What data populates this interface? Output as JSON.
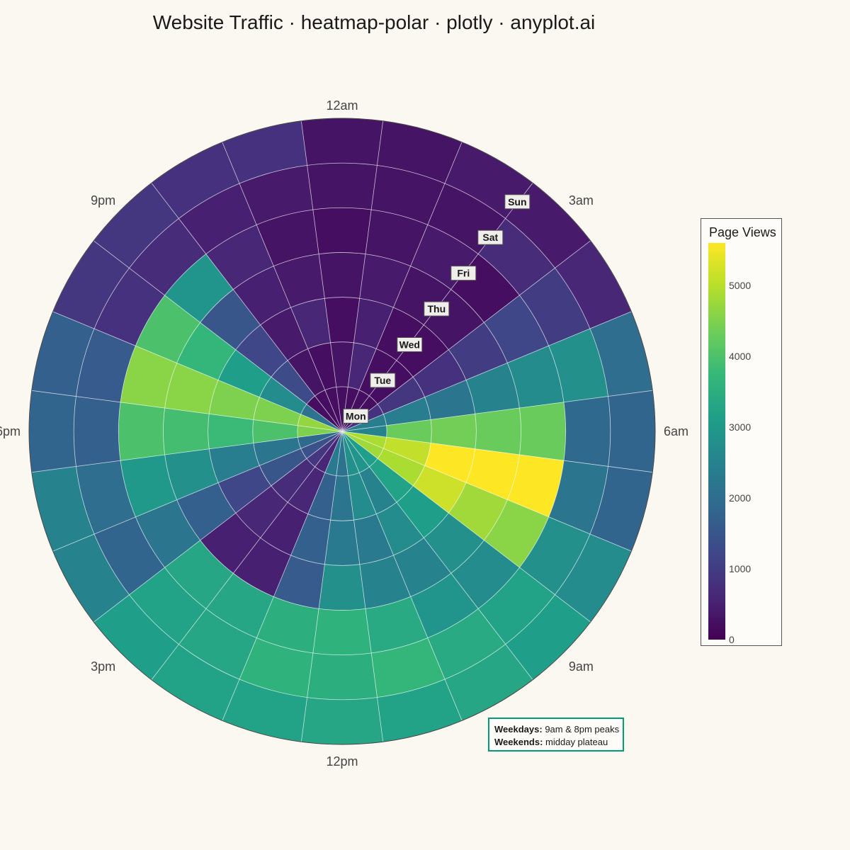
{
  "title": "Website Traffic · heatmap-polar · plotly · anyplot.ai",
  "chart_data": {
    "type": "heatmap-polar",
    "radial_axis_categories": [
      "Mon",
      "Tue",
      "Wed",
      "Thu",
      "Fri",
      "Sat",
      "Sun"
    ],
    "angular_axis_labels": [
      "12am",
      "3am",
      "6am",
      "9am",
      "12pm",
      "3pm",
      "6pm",
      "9pm"
    ],
    "hours": [
      0,
      1,
      2,
      3,
      4,
      5,
      6,
      7,
      8,
      9,
      10,
      11,
      12,
      13,
      14,
      15,
      16,
      17,
      18,
      19,
      20,
      21,
      22,
      23
    ],
    "direction": "clockwise",
    "rotation": "12am at top",
    "colorscale": "Viridis",
    "color_range": [
      0,
      5600
    ],
    "colorbar": {
      "title": "Page Views",
      "ticks": [
        0,
        1000,
        2000,
        3000,
        4000,
        5000
      ]
    },
    "values": {
      "Mon": [
        200,
        200,
        200,
        200,
        800,
        2400,
        2500,
        4900,
        4800,
        3100,
        2900,
        2800,
        2100,
        2300,
        600,
        900,
        1400,
        1900,
        4500,
        4700,
        2100,
        200,
        200,
        200
      ],
      "Tue": [
        300,
        600,
        200,
        200,
        900,
        2400,
        4300,
        5100,
        4900,
        3200,
        2500,
        2700,
        2200,
        1700,
        600,
        700,
        1500,
        2200,
        4000,
        4500,
        2700,
        1300,
        300,
        200
      ],
      "Wed": [
        200,
        500,
        200,
        200,
        800,
        2200,
        4400,
        5600,
        5200,
        3100,
        2700,
        2300,
        2300,
        1700,
        500,
        600,
        1200,
        2400,
        3800,
        4500,
        3100,
        1200,
        400,
        600
      ],
      "Thu": [
        300,
        400,
        300,
        300,
        1000,
        2500,
        4300,
        5600,
        4800,
        2800,
        2500,
        2500,
        2800,
        1600,
        500,
        500,
        1700,
        2800,
        3900,
        4600,
        3700,
        1500,
        500,
        400
      ],
      "Fri": [
        200,
        300,
        400,
        200,
        1200,
        2700,
        4300,
        5600,
        4600,
        2700,
        2900,
        3400,
        3600,
        3500,
        3300,
        3300,
        2200,
        3000,
        4000,
        4600,
        4000,
        2900,
        600,
        300
      ],
      "Sat": [
        300,
        300,
        300,
        700,
        1000,
        2800,
        1900,
        2200,
        2800,
        3200,
        3400,
        3700,
        3500,
        3600,
        3300,
        3200,
        1800,
        2000,
        1700,
        1600,
        800,
        700,
        500,
        400
      ],
      "Sun": [
        300,
        300,
        400,
        400,
        600,
        2000,
        1800,
        1800,
        2700,
        3100,
        3300,
        3200,
        3300,
        3200,
        3200,
        3100,
        2500,
        2500,
        1800,
        1700,
        900,
        900,
        800,
        800
      ]
    }
  },
  "annotation": {
    "weekdays_label": "Weekdays:",
    "weekdays_text": "9am & 8pm peaks",
    "weekends_label": "Weekends:",
    "weekends_text": "midday plateau"
  },
  "colors": {
    "background": "#FAF8F1",
    "annotation_border": "#009E73"
  }
}
